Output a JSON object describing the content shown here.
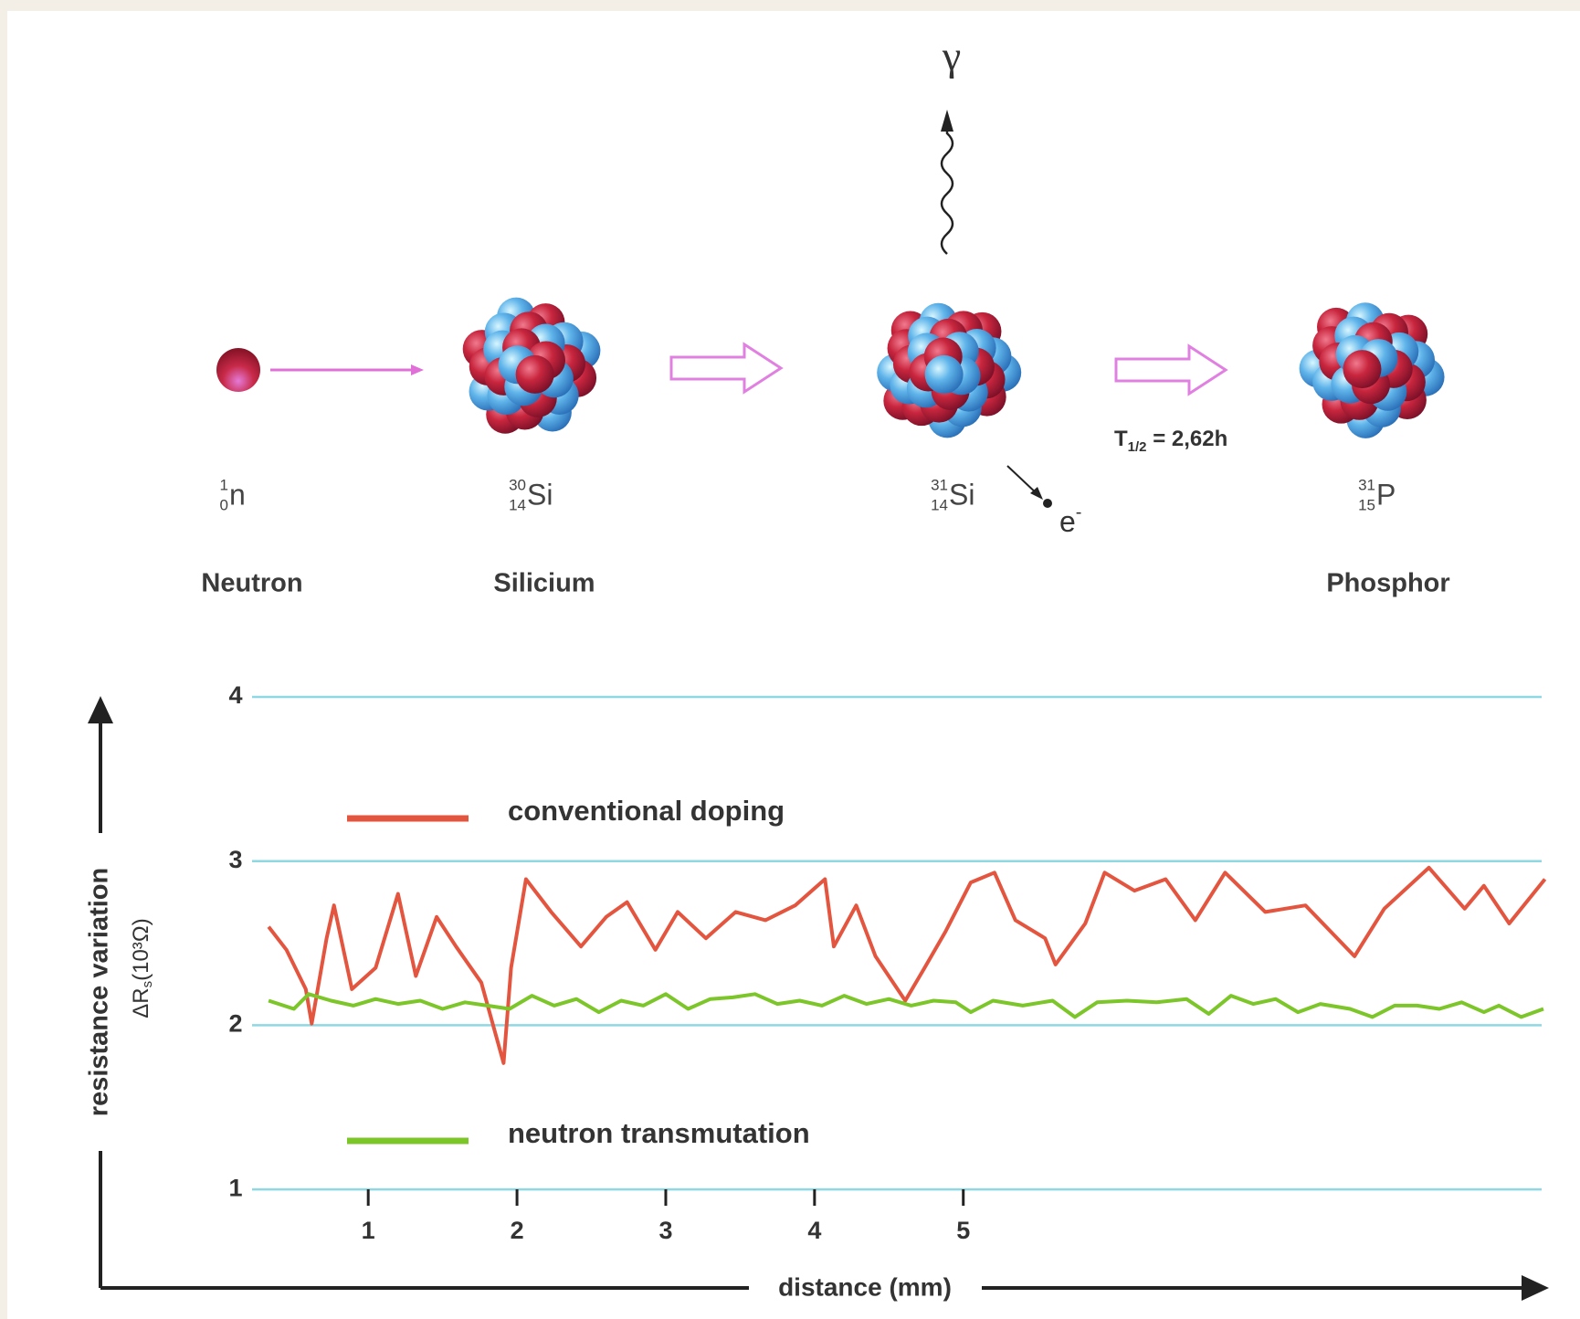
{
  "diagram": {
    "gamma": "γ",
    "electron": {
      "symbol": "e",
      "superscript": "-"
    },
    "half_life": {
      "symbol": "T",
      "subscript": "1/2",
      "text": " = 2,62h"
    },
    "nuclides": [
      {
        "mass": "1",
        "atomic": "0",
        "symbol": "n",
        "name": "Neutron"
      },
      {
        "mass": "30",
        "atomic": "14",
        "symbol": "Si",
        "name": "Silicium"
      },
      {
        "mass": "31",
        "atomic": "14",
        "symbol": "Si"
      },
      {
        "mass": "31",
        "atomic": "15",
        "symbol": "P",
        "name": "Phosphor"
      }
    ]
  },
  "chart_data": {
    "type": "line",
    "ylabel": "resistance variation",
    "ylabel2": {
      "text": "ΔR",
      "subscript": "s",
      "unit": "(10³Ω)"
    },
    "xlabel": "distance (mm)",
    "xlim": [
      -0.8,
      8.9
    ],
    "ylim": [
      0.4,
      4.1
    ],
    "xticks": [
      1,
      2,
      3,
      4,
      5
    ],
    "yticks": [
      1,
      2,
      3,
      4
    ],
    "grid": true,
    "series": [
      {
        "name": "conventional doping",
        "color": "#e4553f",
        "x": [
          0.33,
          0.45,
          0.58,
          0.62,
          0.72,
          0.77,
          0.89,
          1.05,
          1.2,
          1.32,
          1.46,
          1.59,
          1.76,
          1.91,
          1.96,
          2.06,
          2.23,
          2.43,
          2.6,
          2.74,
          2.93,
          3.08,
          3.27,
          3.47,
          3.67,
          3.87,
          4.07,
          4.13,
          4.28,
          4.41,
          4.61,
          4.74,
          4.88,
          5.05,
          5.21,
          5.35,
          5.55,
          5.62,
          5.82,
          5.95,
          6.15,
          6.36,
          6.56,
          6.76,
          7.03,
          7.3,
          7.63,
          7.83,
          8.13,
          8.37,
          8.5,
          8.67,
          8.91
        ],
        "values": [
          2.6,
          2.46,
          2.22,
          2.01,
          2.53,
          2.73,
          2.22,
          2.35,
          2.8,
          2.3,
          2.66,
          2.48,
          2.26,
          1.77,
          2.35,
          2.89,
          2.69,
          2.48,
          2.66,
          2.75,
          2.46,
          2.69,
          2.53,
          2.69,
          2.64,
          2.73,
          2.89,
          2.48,
          2.73,
          2.42,
          2.15,
          2.35,
          2.57,
          2.87,
          2.93,
          2.64,
          2.53,
          2.37,
          2.62,
          2.93,
          2.82,
          2.89,
          2.64,
          2.93,
          2.69,
          2.73,
          2.42,
          2.71,
          2.96,
          2.71,
          2.85,
          2.62,
          2.89
        ]
      },
      {
        "name": "neutron transmutation",
        "color": "#7cc62a",
        "x": [
          0.33,
          0.5,
          0.6,
          0.75,
          0.9,
          1.05,
          1.2,
          1.35,
          1.5,
          1.65,
          1.8,
          1.95,
          2.1,
          2.25,
          2.4,
          2.55,
          2.7,
          2.85,
          3.0,
          3.15,
          3.3,
          3.45,
          3.6,
          3.75,
          3.9,
          4.05,
          4.2,
          4.35,
          4.5,
          4.65,
          4.8,
          4.95,
          5.05,
          5.2,
          5.4,
          5.6,
          5.75,
          5.9,
          6.1,
          6.3,
          6.5,
          6.65,
          6.8,
          6.95,
          7.1,
          7.25,
          7.4,
          7.6,
          7.75,
          7.9,
          8.05,
          8.2,
          8.35,
          8.5,
          8.6,
          8.75,
          8.9
        ],
        "values": [
          2.15,
          2.1,
          2.19,
          2.15,
          2.12,
          2.16,
          2.13,
          2.15,
          2.1,
          2.14,
          2.12,
          2.1,
          2.18,
          2.12,
          2.16,
          2.08,
          2.15,
          2.12,
          2.19,
          2.1,
          2.16,
          2.17,
          2.19,
          2.13,
          2.15,
          2.12,
          2.18,
          2.13,
          2.16,
          2.12,
          2.15,
          2.14,
          2.08,
          2.15,
          2.12,
          2.15,
          2.05,
          2.14,
          2.15,
          2.14,
          2.16,
          2.07,
          2.18,
          2.13,
          2.16,
          2.08,
          2.13,
          2.1,
          2.05,
          2.12,
          2.12,
          2.1,
          2.14,
          2.08,
          2.12,
          2.05,
          2.1
        ]
      }
    ]
  }
}
